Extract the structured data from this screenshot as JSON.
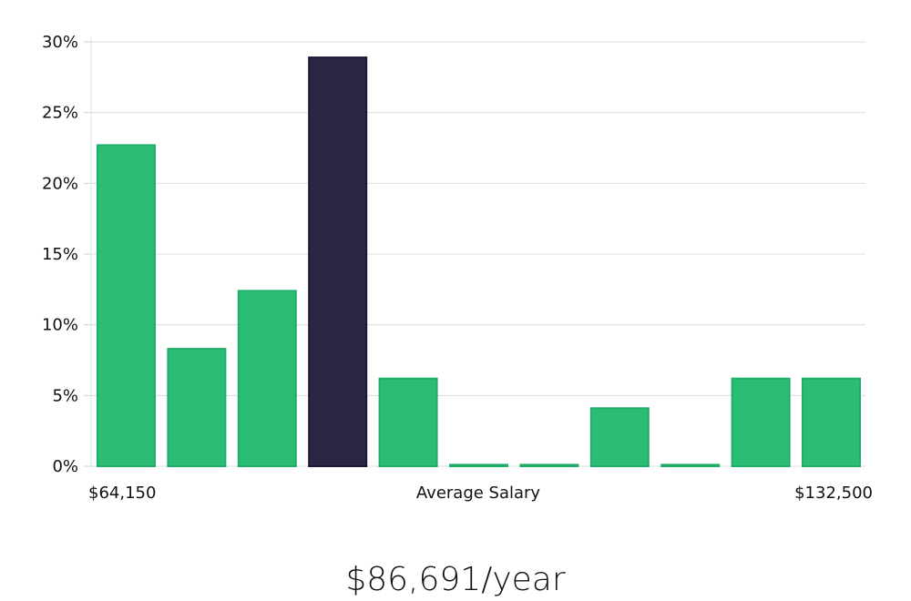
{
  "chart_data": {
    "type": "bar",
    "categories": [
      "1",
      "2",
      "3",
      "4",
      "5",
      "6",
      "7",
      "8",
      "9",
      "10",
      "11"
    ],
    "values": [
      22.7,
      8.3,
      12.4,
      28.9,
      6.2,
      0.1,
      0.1,
      4.1,
      0.1,
      6.2,
      6.2
    ],
    "highlight_index": 3,
    "ylim": [
      0,
      30
    ],
    "yticks": [
      0,
      5,
      10,
      15,
      20,
      25,
      30
    ],
    "ytick_labels": [
      "0%",
      "5%",
      "10%",
      "15%",
      "20%",
      "25%",
      "30%"
    ],
    "x_min_label": "$64,150",
    "xlabel": "Average Salary",
    "x_max_label": "$132,500",
    "grid": true,
    "colors": {
      "bar": "#2bbd76",
      "bar_stroke": "#1fae67",
      "highlight": "#2a2645",
      "highlight_stroke": "#1c1838"
    }
  },
  "salary_text": "$86,691/year"
}
